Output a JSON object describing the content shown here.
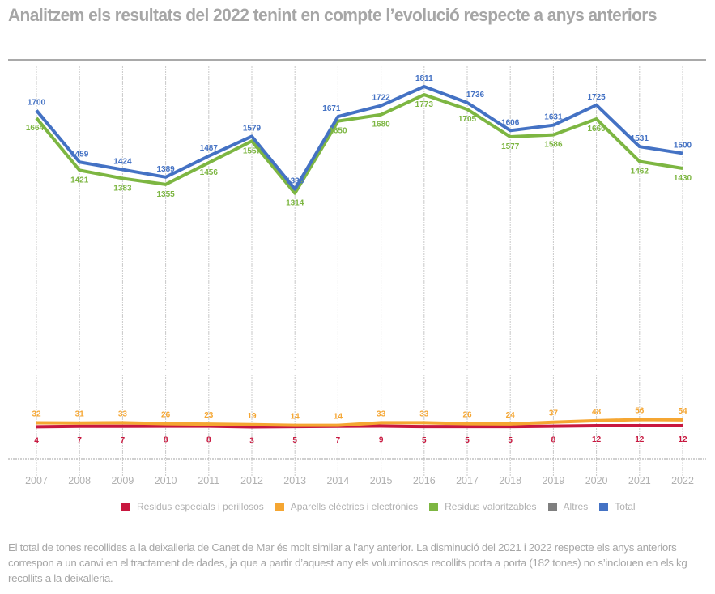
{
  "title": "Analitzem els resultats del 2022 tenint en compte l’evolució respecte a anys anteriors",
  "footnote": "El total de tones recollides a la deixalleria de Canet de Mar és molt similar a l’any anterior. La disminució del 2021 i 2022 respecte els anys anteriors correspon a un canvi en el tractament de dades, ja que a partir d’aquest any els voluminosos recollits porta a porta (182 tones) no s’inclouen en els kg recollits a la deixalleria.",
  "chart_data": {
    "type": "line",
    "title": "Analitzem els resultats del 2022 tenint en compte l’evolució respecte a anys anteriors",
    "xlabel": "",
    "ylabel": "",
    "x": [
      "2007",
      "2008",
      "2009",
      "2010",
      "2011",
      "2012",
      "2013",
      "2014",
      "2015",
      "2016",
      "2017",
      "2018",
      "2019",
      "2020",
      "2021",
      "2022"
    ],
    "axis_break": true,
    "grid": "vertical-dotted",
    "legend_position": "bottom-center",
    "series": [
      {
        "name": "Residus especials i perillosos",
        "color": "#c8173f",
        "values": [
          4,
          7,
          7,
          8,
          8,
          3,
          5,
          7,
          9,
          5,
          5,
          5,
          8,
          12,
          12,
          12
        ]
      },
      {
        "name": "Aparells elèctrics i electrònics",
        "color": "#f5a632",
        "values": [
          32,
          31,
          33,
          26,
          23,
          19,
          14,
          14,
          33,
          33,
          26,
          24,
          37,
          48,
          56,
          54
        ]
      },
      {
        "name": "Residus valoritzables",
        "color": "#7db642",
        "values": [
          1664,
          1421,
          1383,
          1355,
          1456,
          1557,
          1314,
          1650,
          1680,
          1773,
          1705,
          1577,
          1586,
          1660,
          1462,
          1430
        ]
      },
      {
        "name": "Altres",
        "color": "#7f7f7f",
        "values": []
      },
      {
        "name": "Total",
        "color": "#4472c4",
        "values": [
          1700,
          1459,
          1424,
          1389,
          1487,
          1579,
          1333,
          1671,
          1722,
          1811,
          1736,
          1606,
          1631,
          1725,
          1531,
          1500
        ]
      }
    ]
  }
}
